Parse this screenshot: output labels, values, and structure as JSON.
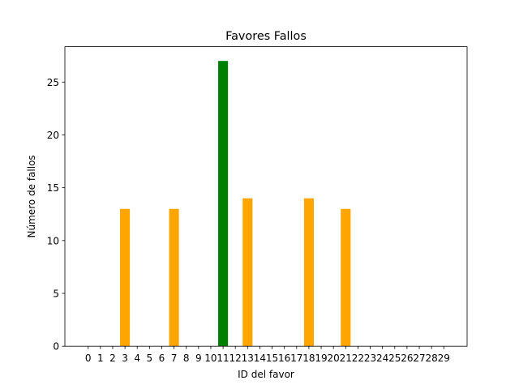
{
  "chart_data": {
    "type": "bar",
    "title": "Favores Fallos",
    "xlabel": "ID del favor",
    "ylabel": "Número de fallos",
    "categories": [
      "0",
      "1",
      "2",
      "3",
      "4",
      "5",
      "6",
      "7",
      "8",
      "9",
      "10",
      "11",
      "12",
      "13",
      "14",
      "15",
      "16",
      "17",
      "18",
      "19",
      "20",
      "21",
      "22",
      "23",
      "24",
      "25",
      "26",
      "27",
      "28",
      "29"
    ],
    "values": [
      0,
      0,
      0,
      13,
      0,
      0,
      0,
      13,
      0,
      0,
      0,
      27,
      0,
      14,
      0,
      0,
      0,
      0,
      14,
      0,
      0,
      13,
      0,
      0,
      0,
      0,
      0,
      0,
      0,
      0
    ],
    "bar_colors": [
      "#ffa500",
      "#ffa500",
      "#ffa500",
      "#ffa500",
      "#ffa500",
      "#ffa500",
      "#ffa500",
      "#ffa500",
      "#ffa500",
      "#ffa500",
      "#ffa500",
      "#008000",
      "#ffa500",
      "#ffa500",
      "#ffa500",
      "#ffa500",
      "#ffa500",
      "#ffa500",
      "#ffa500",
      "#ffa500",
      "#ffa500",
      "#ffa500",
      "#ffa500",
      "#ffa500",
      "#ffa500",
      "#ffa500",
      "#ffa500",
      "#ffa500",
      "#ffa500",
      "#ffa500"
    ],
    "yticks": [
      0,
      5,
      10,
      15,
      20,
      25
    ],
    "ylim": [
      0,
      28.35
    ],
    "xlim": [
      -1.9,
      30.9
    ],
    "grid": false,
    "legend": "none"
  }
}
